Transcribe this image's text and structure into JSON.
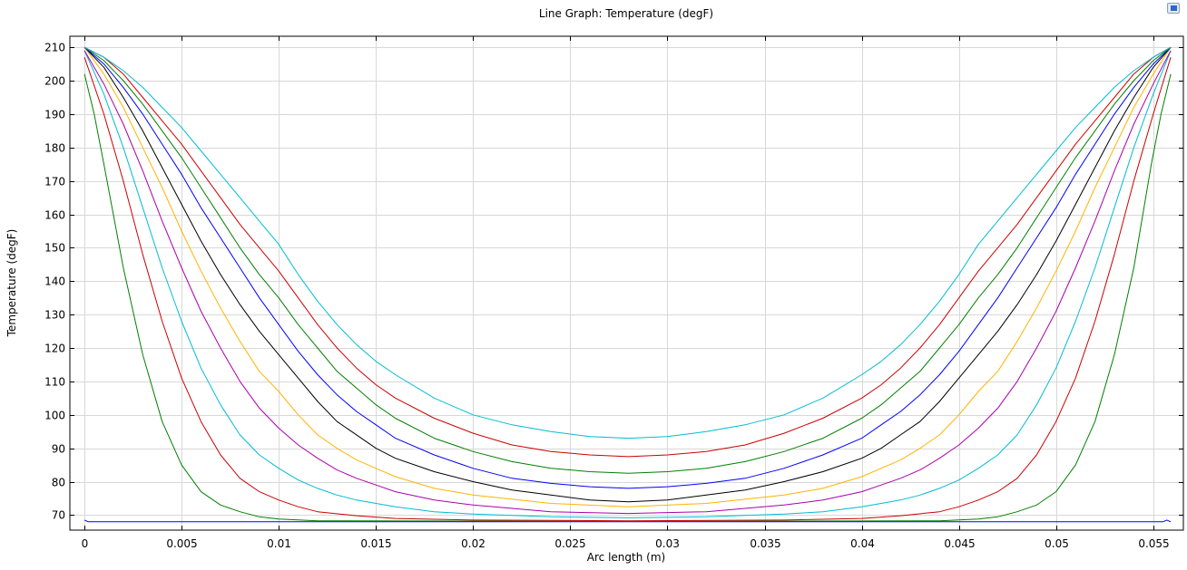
{
  "chart_data": {
    "type": "line",
    "title": "Line Graph: Temperature (degF)",
    "xlabel": "Arc length (m)",
    "ylabel": "Temperature (degF)",
    "xlim": [
      -0.00075,
      0.05655
    ],
    "ylim": [
      65.5,
      213.3
    ],
    "x_ticks": [
      0,
      0.005,
      0.01,
      0.015,
      0.02,
      0.025,
      0.03,
      0.035,
      0.04,
      0.045,
      0.05,
      0.055
    ],
    "x_tick_labels": [
      "0",
      "0.005",
      "0.01",
      "0.015",
      "0.02",
      "0.025",
      "0.03",
      "0.035",
      "0.04",
      "0.045",
      "0.05",
      "0.055"
    ],
    "y_ticks": [
      70,
      80,
      90,
      100,
      110,
      120,
      130,
      140,
      150,
      160,
      170,
      180,
      190,
      200,
      210
    ],
    "grid": true,
    "legend": "none",
    "series": [
      {
        "color": "#0000ff",
        "x": [
          0,
          0.0002,
          0.001,
          0.028,
          0.0555,
          0.0557,
          0.0559
        ],
        "y": [
          68.5,
          68.0,
          68.0,
          68.0,
          68.0,
          68.5,
          68.0
        ]
      },
      {
        "color": "#008000",
        "x": [
          0,
          0.0005,
          0.001,
          0.002,
          0.003,
          0.004,
          0.005,
          0.006,
          0.007,
          0.008,
          0.009,
          0.01,
          0.012,
          0.028,
          0.044,
          0.046,
          0.047,
          0.048,
          0.049,
          0.05,
          0.051,
          0.052,
          0.053,
          0.054,
          0.0549,
          0.0554,
          0.0559
        ],
        "y": [
          202,
          190,
          175,
          144,
          118,
          98,
          85,
          77,
          73,
          71,
          69.5,
          68.8,
          68.3,
          68.1,
          68.3,
          68.8,
          69.5,
          71,
          73,
          77,
          85,
          98,
          118,
          144,
          175,
          190,
          202
        ]
      },
      {
        "color": "#cc0000",
        "x": [
          0,
          0.001,
          0.002,
          0.003,
          0.004,
          0.005,
          0.006,
          0.007,
          0.008,
          0.009,
          0.01,
          0.011,
          0.012,
          0.014,
          0.016,
          0.02,
          0.028,
          0.036,
          0.04,
          0.042,
          0.044,
          0.045,
          0.046,
          0.047,
          0.048,
          0.049,
          0.05,
          0.051,
          0.052,
          0.053,
          0.054,
          0.055,
          0.0559
        ],
        "y": [
          207,
          190,
          170,
          148,
          128,
          111,
          98,
          88,
          81,
          77,
          74.5,
          72.5,
          71,
          69.8,
          69,
          68.5,
          68.3,
          68.5,
          69,
          69.8,
          71,
          72.5,
          74.5,
          77,
          81,
          88,
          98,
          111,
          128,
          148,
          170,
          190,
          207
        ]
      },
      {
        "color": "#00bcd4",
        "x": [
          0,
          0.001,
          0.002,
          0.003,
          0.004,
          0.005,
          0.006,
          0.007,
          0.008,
          0.009,
          0.01,
          0.011,
          0.012,
          0.013,
          0.014,
          0.016,
          0.018,
          0.02,
          0.024,
          0.028,
          0.032,
          0.036,
          0.038,
          0.04,
          0.042,
          0.043,
          0.044,
          0.045,
          0.046,
          0.047,
          0.048,
          0.049,
          0.05,
          0.051,
          0.052,
          0.053,
          0.054,
          0.055,
          0.0559
        ],
        "y": [
          209,
          196,
          180,
          162,
          144,
          128,
          114,
          103,
          94,
          88,
          84,
          80.5,
          78,
          76,
          74.5,
          72.5,
          71,
          70.3,
          69.5,
          69.2,
          69.5,
          70.3,
          71,
          72.5,
          74.5,
          76,
          78,
          80.5,
          84,
          88,
          94,
          103,
          114,
          128,
          144,
          162,
          180,
          196,
          209
        ]
      },
      {
        "color": "#aa00aa",
        "x": [
          0,
          0.001,
          0.002,
          0.003,
          0.004,
          0.005,
          0.006,
          0.007,
          0.008,
          0.009,
          0.01,
          0.011,
          0.012,
          0.013,
          0.014,
          0.015,
          0.016,
          0.018,
          0.02,
          0.024,
          0.028,
          0.032,
          0.036,
          0.038,
          0.04,
          0.041,
          0.042,
          0.043,
          0.044,
          0.045,
          0.046,
          0.047,
          0.048,
          0.049,
          0.05,
          0.051,
          0.052,
          0.053,
          0.054,
          0.055,
          0.0559
        ],
        "y": [
          209,
          199,
          187,
          173,
          158,
          144,
          131,
          120,
          110,
          102,
          96,
          91,
          87,
          83.5,
          81,
          79,
          77,
          74.5,
          73,
          71,
          70.5,
          71,
          73,
          74.5,
          77,
          79,
          81,
          83.5,
          87,
          91,
          96,
          102,
          110,
          120,
          131,
          144,
          158,
          173,
          187,
          199,
          209
        ]
      },
      {
        "color": "#ffb300",
        "x": [
          0,
          0.001,
          0.002,
          0.003,
          0.004,
          0.005,
          0.006,
          0.007,
          0.008,
          0.009,
          0.01,
          0.011,
          0.012,
          0.013,
          0.014,
          0.015,
          0.016,
          0.018,
          0.02,
          0.024,
          0.028,
          0.032,
          0.036,
          0.038,
          0.04,
          0.041,
          0.042,
          0.043,
          0.044,
          0.045,
          0.046,
          0.047,
          0.048,
          0.049,
          0.05,
          0.051,
          0.052,
          0.053,
          0.054,
          0.055,
          0.0559
        ],
        "y": [
          210,
          202,
          192,
          180,
          168,
          155,
          143,
          132,
          122,
          113,
          107,
          100,
          94,
          90,
          86.5,
          84,
          81.5,
          78,
          76,
          73.5,
          72.5,
          73.5,
          76,
          78,
          81.5,
          84,
          86.5,
          90,
          94,
          100,
          107,
          113,
          122,
          132,
          143,
          155,
          168,
          180,
          192,
          202,
          210
        ]
      },
      {
        "color": "#000000",
        "x": [
          0,
          0.001,
          0.002,
          0.003,
          0.004,
          0.005,
          0.006,
          0.007,
          0.008,
          0.009,
          0.01,
          0.011,
          0.012,
          0.013,
          0.014,
          0.015,
          0.016,
          0.018,
          0.02,
          0.022,
          0.024,
          0.026,
          0.028,
          0.03,
          0.032,
          0.034,
          0.036,
          0.038,
          0.04,
          0.041,
          0.042,
          0.043,
          0.044,
          0.045,
          0.046,
          0.047,
          0.048,
          0.049,
          0.05,
          0.051,
          0.052,
          0.053,
          0.054,
          0.055,
          0.0559
        ],
        "y": [
          210,
          204,
          195,
          185,
          174,
          163,
          152,
          142,
          133,
          125,
          118,
          111,
          104,
          98,
          94,
          90,
          87,
          83,
          80,
          77.5,
          76,
          74.5,
          74,
          74.5,
          76,
          77.5,
          80,
          83,
          87,
          90,
          94,
          98,
          104,
          111,
          118,
          125,
          133,
          142,
          152,
          163,
          174,
          185,
          195,
          204,
          210
        ]
      },
      {
        "color": "#0000ff",
        "x": [
          0,
          0.001,
          0.002,
          0.003,
          0.004,
          0.005,
          0.006,
          0.007,
          0.008,
          0.009,
          0.01,
          0.011,
          0.012,
          0.013,
          0.014,
          0.015,
          0.016,
          0.018,
          0.02,
          0.022,
          0.024,
          0.026,
          0.028,
          0.03,
          0.032,
          0.034,
          0.036,
          0.038,
          0.04,
          0.041,
          0.042,
          0.043,
          0.044,
          0.045,
          0.046,
          0.047,
          0.048,
          0.049,
          0.05,
          0.051,
          0.052,
          0.053,
          0.054,
          0.055,
          0.0559
        ],
        "y": [
          210,
          205,
          198,
          190,
          181,
          172,
          162,
          153,
          144,
          135,
          127,
          119,
          112,
          106,
          101,
          97,
          93,
          88,
          84,
          81,
          79.5,
          78.5,
          78,
          78.5,
          79.5,
          81,
          84,
          88,
          93,
          97,
          101,
          106,
          112,
          119,
          127,
          135,
          144,
          153,
          162,
          172,
          181,
          190,
          198,
          205,
          210
        ]
      },
      {
        "color": "#008000",
        "x": [
          0,
          0.001,
          0.002,
          0.003,
          0.004,
          0.005,
          0.006,
          0.007,
          0.008,
          0.009,
          0.01,
          0.011,
          0.012,
          0.013,
          0.014,
          0.015,
          0.016,
          0.018,
          0.02,
          0.022,
          0.024,
          0.026,
          0.028,
          0.03,
          0.032,
          0.034,
          0.036,
          0.038,
          0.04,
          0.041,
          0.042,
          0.043,
          0.044,
          0.045,
          0.046,
          0.047,
          0.048,
          0.049,
          0.05,
          0.051,
          0.052,
          0.053,
          0.054,
          0.055,
          0.0559
        ],
        "y": [
          210,
          206,
          200,
          193,
          185,
          177,
          168,
          159,
          150,
          142,
          135,
          127,
          120,
          113,
          108,
          103,
          99,
          93,
          89,
          86,
          84,
          83,
          82.5,
          83,
          84,
          86,
          89,
          93,
          99,
          103,
          108,
          113,
          120,
          127,
          135,
          142,
          150,
          159,
          168,
          177,
          185,
          193,
          200,
          206,
          210
        ]
      },
      {
        "color": "#cc0000",
        "x": [
          0,
          0.001,
          0.002,
          0.003,
          0.004,
          0.005,
          0.006,
          0.007,
          0.008,
          0.009,
          0.01,
          0.011,
          0.012,
          0.013,
          0.014,
          0.015,
          0.016,
          0.018,
          0.02,
          0.022,
          0.024,
          0.026,
          0.028,
          0.03,
          0.032,
          0.034,
          0.036,
          0.038,
          0.04,
          0.041,
          0.042,
          0.043,
          0.044,
          0.045,
          0.046,
          0.047,
          0.048,
          0.049,
          0.05,
          0.051,
          0.052,
          0.053,
          0.054,
          0.055,
          0.0559
        ],
        "y": [
          210,
          207,
          202,
          195,
          188,
          181,
          173,
          165,
          157,
          150,
          143,
          135,
          127,
          120,
          114,
          109,
          105,
          99,
          94.5,
          91,
          89,
          88,
          87.5,
          88,
          89,
          91,
          94.5,
          99,
          105,
          109,
          114,
          120,
          127,
          135,
          143,
          150,
          157,
          165,
          173,
          181,
          188,
          195,
          202,
          207,
          210
        ]
      },
      {
        "color": "#00bcd4",
        "x": [
          0,
          0.001,
          0.002,
          0.003,
          0.004,
          0.005,
          0.006,
          0.007,
          0.008,
          0.009,
          0.01,
          0.011,
          0.012,
          0.013,
          0.014,
          0.015,
          0.016,
          0.018,
          0.02,
          0.022,
          0.024,
          0.026,
          0.028,
          0.03,
          0.032,
          0.034,
          0.036,
          0.038,
          0.04,
          0.041,
          0.042,
          0.043,
          0.044,
          0.045,
          0.046,
          0.047,
          0.048,
          0.049,
          0.05,
          0.051,
          0.052,
          0.053,
          0.054,
          0.055,
          0.0559
        ],
        "y": [
          210,
          207,
          203,
          198,
          192,
          186,
          179,
          172,
          165,
          158,
          151,
          142,
          134,
          127,
          121,
          116,
          112,
          105,
          100,
          97,
          95,
          93.5,
          93,
          93.5,
          95,
          97,
          100,
          105,
          112,
          116,
          121,
          127,
          134,
          142,
          151,
          158,
          165,
          172,
          179,
          186,
          192,
          198,
          203,
          207,
          210
        ]
      }
    ]
  }
}
